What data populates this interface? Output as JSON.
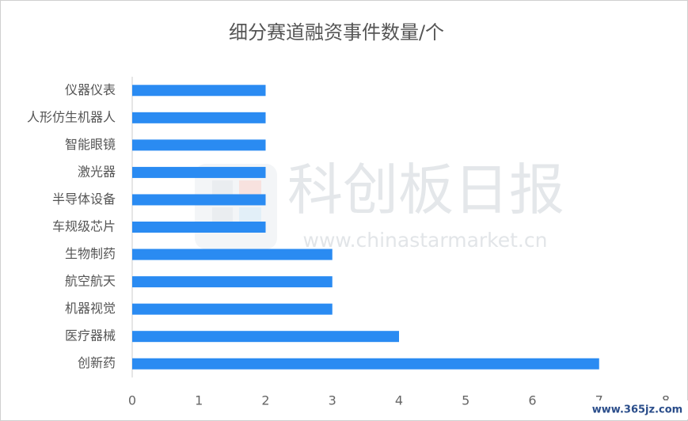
{
  "chart_data": {
    "type": "barh",
    "title": "细分赛道融资事件数量/个",
    "categories": [
      "仪器仪表",
      "人形仿生机器人",
      "智能眼镜",
      "激光器",
      "半导体设备",
      "车规级芯片",
      "生物制药",
      "航空航天",
      "机器视觉",
      "医疗器械",
      "创新药"
    ],
    "values": [
      2,
      2,
      2,
      2,
      2,
      2,
      3,
      3,
      3,
      4,
      7
    ],
    "color": "#2a8bf2",
    "xlim": [
      0,
      8
    ],
    "xticks": [
      0,
      1,
      2,
      3,
      4,
      5,
      6,
      7,
      8
    ],
    "grid": false
  },
  "watermarks": {
    "brand": "科创板日报",
    "site": "www.chinastarmarket.cn",
    "source": "www.365jz.com"
  }
}
